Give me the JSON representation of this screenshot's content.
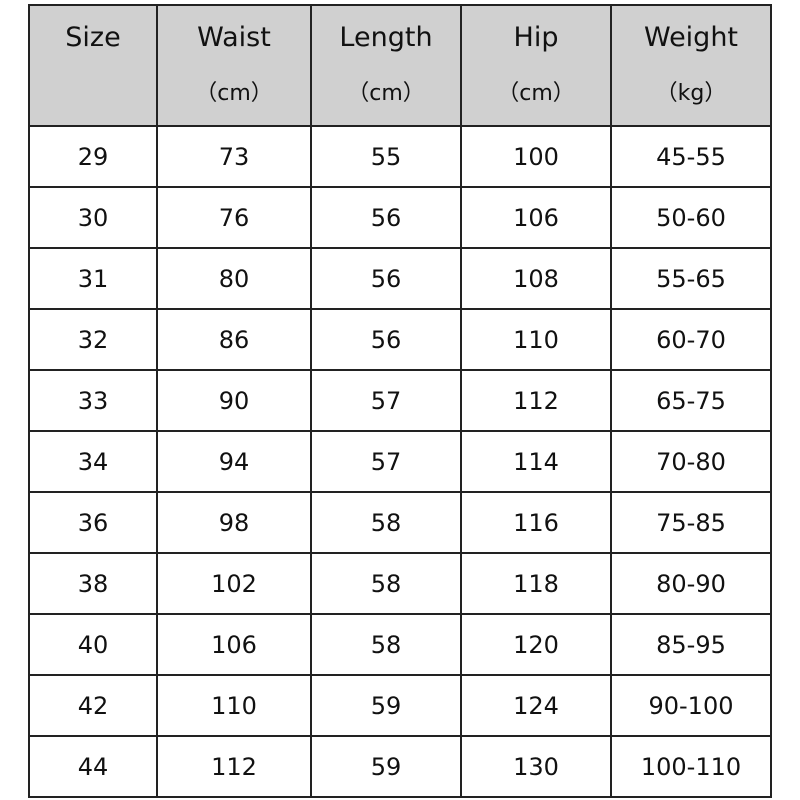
{
  "table": {
    "headers": [
      {
        "title": "Size",
        "unit": ""
      },
      {
        "title": "Waist",
        "unit": "（cm）"
      },
      {
        "title": "Length",
        "unit": "（cm）"
      },
      {
        "title": "Hip",
        "unit": "（cm）"
      },
      {
        "title": "Weight",
        "unit": "（kg）"
      }
    ],
    "rows": [
      [
        "29",
        "73",
        "55",
        "100",
        "45-55"
      ],
      [
        "30",
        "76",
        "56",
        "106",
        "50-60"
      ],
      [
        "31",
        "80",
        "56",
        "108",
        "55-65"
      ],
      [
        "32",
        "86",
        "56",
        "110",
        "60-70"
      ],
      [
        "33",
        "90",
        "57",
        "112",
        "65-75"
      ],
      [
        "34",
        "94",
        "57",
        "114",
        "70-80"
      ],
      [
        "36",
        "98",
        "58",
        "116",
        "75-85"
      ],
      [
        "38",
        "102",
        "58",
        "118",
        "80-90"
      ],
      [
        "40",
        "106",
        "58",
        "120",
        "85-95"
      ],
      [
        "42",
        "110",
        "59",
        "124",
        "90-100"
      ],
      [
        "44",
        "112",
        "59",
        "130",
        "100-110"
      ]
    ],
    "header_bg": "#d0d0d0"
  }
}
